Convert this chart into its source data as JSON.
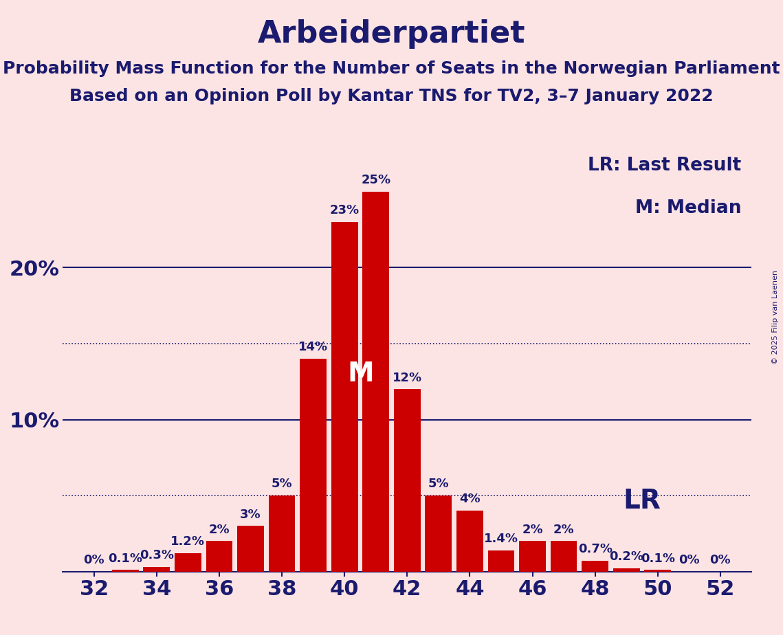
{
  "title": "Arbeiderpartiet",
  "subtitle1": "Probability Mass Function for the Number of Seats in the Norwegian Parliament",
  "subtitle2": "Based on an Opinion Poll by Kantar TNS for TV2, 3–7 January 2022",
  "copyright": "© 2025 Filip van Laenen",
  "seats": [
    32,
    33,
    34,
    35,
    36,
    37,
    38,
    39,
    40,
    41,
    42,
    43,
    44,
    45,
    46,
    47,
    48,
    49,
    50,
    51,
    52
  ],
  "probabilities": [
    0.0,
    0.1,
    0.3,
    1.2,
    2.0,
    3.0,
    5.0,
    14.0,
    23.0,
    25.0,
    12.0,
    5.0,
    4.0,
    1.4,
    2.0,
    2.0,
    0.7,
    0.2,
    0.1,
    0.0,
    0.0
  ],
  "bar_labels": [
    "0%",
    "0.1%",
    "0.3%",
    "1.2%",
    "2%",
    "3%",
    "5%",
    "14%",
    "23%",
    "25%",
    "12%",
    "5%",
    "4%",
    "1.4%",
    "2%",
    "2%",
    "0.7%",
    "0.2%",
    "0.1%",
    "0%",
    "0%"
  ],
  "median_seat": 41,
  "lr_seat": 48,
  "bar_color": "#cc0000",
  "background_color": "#fce4e4",
  "title_color": "#1a1a6e",
  "ytick_values": [
    10,
    20
  ],
  "dotted_lines": [
    5.0,
    15.0
  ],
  "solid_lines": [
    10.0,
    20.0
  ],
  "legend_lr": "LR: Last Result",
  "legend_m": "M: Median",
  "lr_label": "LR",
  "m_label": "M",
  "title_fontsize": 32,
  "subtitle_fontsize": 18,
  "bar_label_fontsize": 13,
  "legend_fontsize": 19,
  "tick_fontsize": 22,
  "m_fontsize": 28,
  "lr_fontsize": 28
}
